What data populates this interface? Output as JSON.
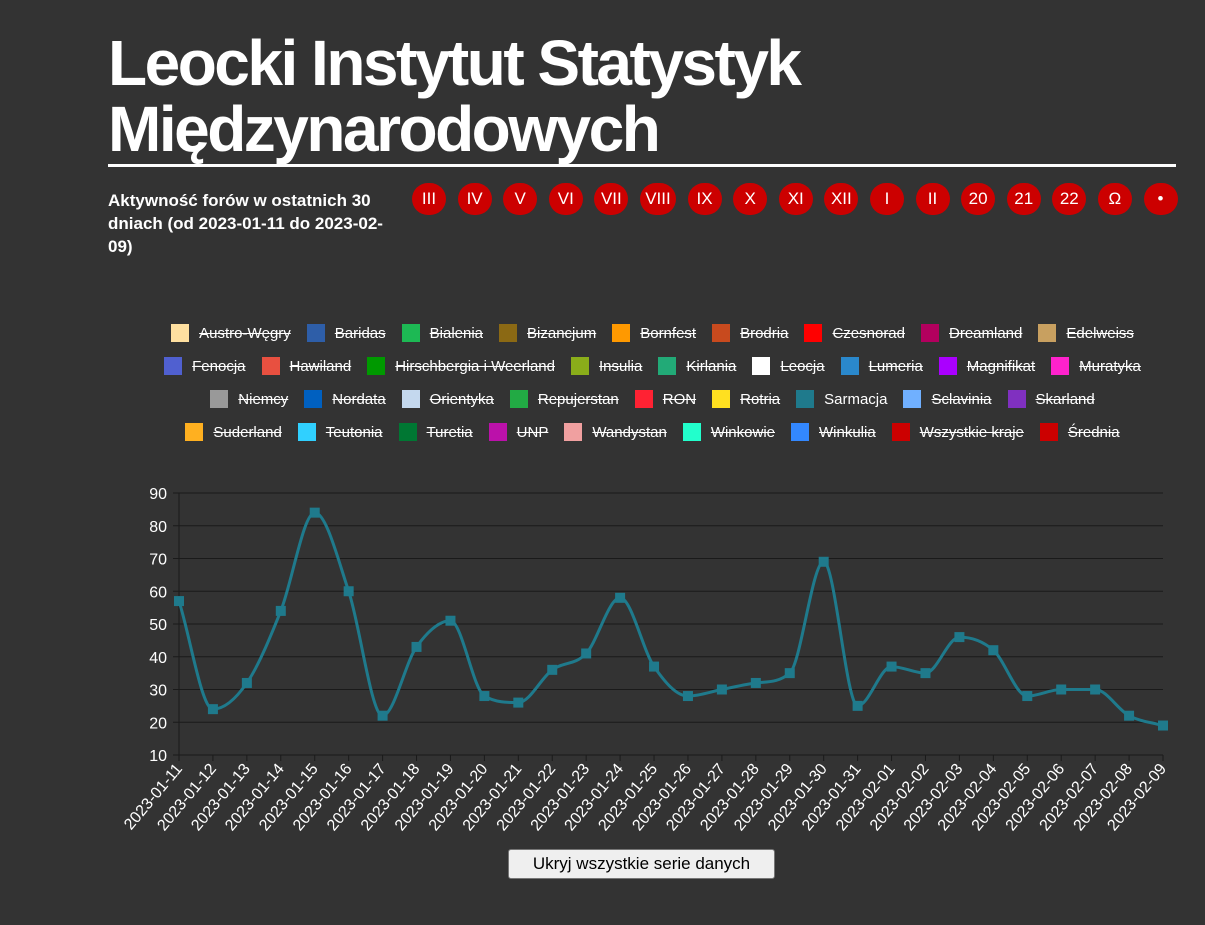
{
  "header": {
    "title_line1": "Leocki Instytut Statystyk",
    "title_line2": "Międzynarodowych",
    "subtitle": "Aktywność forów w ostatnich 30 dniach (od 2023-01-11 do 2023-02-09)"
  },
  "nav": [
    "III",
    "IV",
    "V",
    "VI",
    "VII",
    "VIII",
    "IX",
    "X",
    "XI",
    "XII",
    "I",
    "II",
    "20",
    "21",
    "22",
    "Ω",
    "•"
  ],
  "colors": {
    "background": "#333333",
    "nav": "#cc0000",
    "line": "#1f7a8c"
  },
  "legend": [
    {
      "name": "Austro-Węgry",
      "color": "#ffe0a0",
      "hidden": true
    },
    {
      "name": "Baridas",
      "color": "#2e5ea8",
      "hidden": true
    },
    {
      "name": "Bialenia",
      "color": "#1db954",
      "hidden": true
    },
    {
      "name": "Bizancjum",
      "color": "#8b6914",
      "hidden": true
    },
    {
      "name": "Bornfest",
      "color": "#ff9900",
      "hidden": true
    },
    {
      "name": "Brodria",
      "color": "#c84a1e",
      "hidden": true
    },
    {
      "name": "Czesnorad",
      "color": "#ff0000",
      "hidden": true
    },
    {
      "name": "Dreamland",
      "color": "#b3005e",
      "hidden": true
    },
    {
      "name": "Edelweiss",
      "color": "#c8a060",
      "hidden": true
    },
    {
      "name": "Fenocja",
      "color": "#5060d0",
      "hidden": true
    },
    {
      "name": "Hawiland",
      "color": "#e85040",
      "hidden": true
    },
    {
      "name": "Hirschbergia i Weerland",
      "color": "#009900",
      "hidden": true
    },
    {
      "name": "Insulia",
      "color": "#8aad1a",
      "hidden": true
    },
    {
      "name": "Kirlania",
      "color": "#22aa77",
      "hidden": true
    },
    {
      "name": "Leocja",
      "color": "#ffffff",
      "hidden": true
    },
    {
      "name": "Lumeria",
      "color": "#2a88cc",
      "hidden": true
    },
    {
      "name": "Magnifikat",
      "color": "#aa00ff",
      "hidden": true
    },
    {
      "name": "Muratyka",
      "color": "#ff22cc",
      "hidden": true
    },
    {
      "name": "Niemcy",
      "color": "#999999",
      "hidden": true
    },
    {
      "name": "Nordata",
      "color": "#0060c0",
      "hidden": true
    },
    {
      "name": "Orientyka",
      "color": "#c4d8ee",
      "hidden": true
    },
    {
      "name": "Repujerstan",
      "color": "#22aa44",
      "hidden": true
    },
    {
      "name": "RON",
      "color": "#ff2233",
      "hidden": true
    },
    {
      "name": "Rotria",
      "color": "#ffe020",
      "hidden": true
    },
    {
      "name": "Sarmacja",
      "color": "#1f7a8c",
      "hidden": false
    },
    {
      "name": "Sclavinia",
      "color": "#70b0ff",
      "hidden": true
    },
    {
      "name": "Skarland",
      "color": "#8030c0",
      "hidden": true
    },
    {
      "name": "Suderland",
      "color": "#ffb020",
      "hidden": true
    },
    {
      "name": "Teutonia",
      "color": "#30d0ff",
      "hidden": true
    },
    {
      "name": "Turetia",
      "color": "#007733",
      "hidden": true
    },
    {
      "name": "UNP",
      "color": "#bb11aa",
      "hidden": true
    },
    {
      "name": "Wandystan",
      "color": "#f0a0a0",
      "hidden": true
    },
    {
      "name": "Winkowie",
      "color": "#22ffcc",
      "hidden": true
    },
    {
      "name": "Winkulia",
      "color": "#3388ff",
      "hidden": true
    },
    {
      "name": "Wszystkie kraje",
      "color": "#cc0000",
      "hidden": true
    },
    {
      "name": "Średnia",
      "color": "#cc0000",
      "hidden": true
    }
  ],
  "chart_data": {
    "type": "line",
    "title": "Aktywność forów w ostatnich 30 dniach (od 2023-01-11 do 2023-02-09)",
    "xlabel": "",
    "ylabel": "",
    "ylim": [
      10,
      90
    ],
    "yticks": [
      10,
      20,
      30,
      40,
      50,
      60,
      70,
      80,
      90
    ],
    "grid": true,
    "x": [
      "2023-01-11",
      "2023-01-12",
      "2023-01-13",
      "2023-01-14",
      "2023-01-15",
      "2023-01-16",
      "2023-01-17",
      "2023-01-18",
      "2023-01-19",
      "2023-01-20",
      "2023-01-21",
      "2023-01-22",
      "2023-01-23",
      "2023-01-24",
      "2023-01-25",
      "2023-01-26",
      "2023-01-27",
      "2023-01-28",
      "2023-01-29",
      "2023-01-30",
      "2023-01-31",
      "2023-02-01",
      "2023-02-02",
      "2023-02-03",
      "2023-02-04",
      "2023-02-05",
      "2023-02-06",
      "2023-02-07",
      "2023-02-08",
      "2023-02-09"
    ],
    "series": [
      {
        "name": "Sarmacja",
        "color": "#1f7a8c",
        "values": [
          57,
          24,
          32,
          54,
          84,
          60,
          22,
          43,
          51,
          28,
          26,
          36,
          41,
          58,
          37,
          28,
          30,
          32,
          35,
          69,
          25,
          37,
          35,
          46,
          42,
          28,
          30,
          30,
          22,
          19
        ]
      }
    ]
  },
  "controls": {
    "hide_all_label": "Ukryj wszystkie serie danych"
  }
}
